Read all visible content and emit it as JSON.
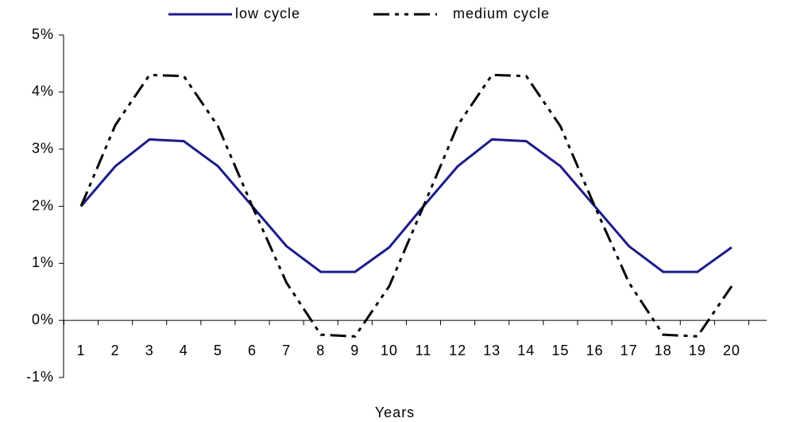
{
  "chart_data": {
    "type": "line",
    "x_label": "Years",
    "categories": [
      "1",
      "2",
      "3",
      "4",
      "5",
      "6",
      "7",
      "8",
      "9",
      "10",
      "11",
      "12",
      "13",
      "14",
      "15",
      "16",
      "17",
      "18",
      "19",
      "20"
    ],
    "series": [
      {
        "name": "low cycle",
        "color": "#1c1c8a",
        "dash": "solid",
        "values": [
          2.0,
          2.7,
          3.17,
          3.14,
          2.7,
          2.0,
          1.3,
          0.85,
          0.85,
          1.28,
          2.0,
          2.7,
          3.17,
          3.14,
          2.7,
          2.0,
          1.3,
          0.85,
          0.85,
          1.28
        ]
      },
      {
        "name": "medium cycle",
        "color": "#000000",
        "dash": "dash-dot-dot",
        "values": [
          2.0,
          3.42,
          4.3,
          4.28,
          3.4,
          2.0,
          0.66,
          -0.25,
          -0.28,
          0.6,
          2.0,
          3.42,
          4.3,
          4.28,
          3.4,
          2.0,
          0.66,
          -0.25,
          -0.28,
          0.6
        ]
      }
    ],
    "ylim": [
      -1,
      5
    ],
    "yticks": [
      {
        "value": -1,
        "label": "-1%"
      },
      {
        "value": 0,
        "label": "0%"
      },
      {
        "value": 1,
        "label": "1%"
      },
      {
        "value": 2,
        "label": "2%"
      },
      {
        "value": 3,
        "label": "3%"
      },
      {
        "value": 4,
        "label": "4%"
      },
      {
        "value": 5,
        "label": "5%"
      }
    ],
    "legend": "top",
    "grid": false
  }
}
